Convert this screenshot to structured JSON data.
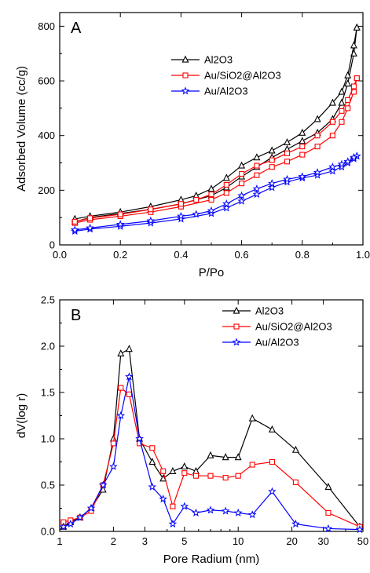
{
  "chart_data": [
    {
      "type": "line",
      "panel_label": "A",
      "xlabel": "P/Po",
      "ylabel": "Adsorbed Volume (cc/g)",
      "xlim": [
        0.0,
        1.0
      ],
      "ylim": [
        0,
        850
      ],
      "x_ticks": [
        0.0,
        0.2,
        0.4,
        0.6,
        0.8,
        1.0
      ],
      "x_tick_labels": [
        "0.0",
        "0.2",
        "0.4",
        "0.6",
        "0.8",
        "1.0"
      ],
      "y_ticks": [
        0,
        200,
        400,
        600,
        800
      ],
      "y_tick_labels": [
        "0",
        "200",
        "400",
        "600",
        "800"
      ],
      "legend_position": "top-right",
      "series": [
        {
          "name": "Al2O3",
          "color": "#000000",
          "marker": "triangle",
          "adsorption": {
            "x": [
              0.05,
              0.1,
              0.2,
              0.3,
              0.4,
              0.5,
              0.55,
              0.6,
              0.65,
              0.7,
              0.75,
              0.8,
              0.85,
              0.9,
              0.93,
              0.95,
              0.97,
              0.98
            ],
            "y": [
              85,
              100,
              115,
              130,
              150,
              180,
              210,
              250,
              285,
              320,
              350,
              380,
              410,
              460,
              520,
              590,
              700,
              795
            ]
          },
          "desorption": {
            "x": [
              0.98,
              0.97,
              0.95,
              0.93,
              0.9,
              0.85,
              0.8,
              0.75,
              0.7,
              0.65,
              0.6,
              0.55,
              0.5,
              0.45,
              0.4,
              0.3,
              0.2,
              0.1,
              0.05
            ],
            "y": [
              795,
              730,
              620,
              560,
              520,
              460,
              410,
              375,
              345,
              320,
              290,
              245,
              205,
              180,
              165,
              140,
              120,
              105,
              95
            ]
          }
        },
        {
          "name": "Au/SiO2@Al2O3",
          "color": "#ff0000",
          "marker": "square",
          "adsorption": {
            "x": [
              0.05,
              0.1,
              0.2,
              0.3,
              0.4,
              0.5,
              0.55,
              0.6,
              0.65,
              0.7,
              0.75,
              0.8,
              0.85,
              0.9,
              0.93,
              0.95,
              0.97,
              0.98
            ],
            "y": [
              80,
              92,
              105,
              120,
              140,
              165,
              190,
              225,
              255,
              285,
              305,
              330,
              360,
              400,
              450,
              500,
              560,
              610
            ]
          },
          "desorption": {
            "x": [
              0.98,
              0.97,
              0.95,
              0.93,
              0.9,
              0.85,
              0.8,
              0.75,
              0.7,
              0.65,
              0.6,
              0.55,
              0.5,
              0.45,
              0.4,
              0.3,
              0.2,
              0.1,
              0.05
            ],
            "y": [
              610,
              580,
              530,
              490,
              450,
              400,
              360,
              335,
              310,
              290,
              260,
              220,
              185,
              165,
              150,
              130,
              112,
              98,
              85
            ]
          }
        },
        {
          "name": "Au/Al2O3",
          "color": "#0000ff",
          "marker": "star",
          "adsorption": {
            "x": [
              0.05,
              0.1,
              0.2,
              0.3,
              0.4,
              0.5,
              0.55,
              0.6,
              0.65,
              0.7,
              0.75,
              0.8,
              0.85,
              0.9,
              0.93,
              0.95,
              0.97,
              0.98
            ],
            "y": [
              50,
              58,
              68,
              80,
              95,
              115,
              135,
              160,
              185,
              210,
              230,
              245,
              255,
              270,
              285,
              300,
              315,
              325
            ]
          },
          "desorption": {
            "x": [
              0.98,
              0.97,
              0.95,
              0.93,
              0.9,
              0.85,
              0.8,
              0.75,
              0.7,
              0.65,
              0.6,
              0.55,
              0.5,
              0.45,
              0.4,
              0.3,
              0.2,
              0.1,
              0.05
            ],
            "y": [
              325,
              320,
              305,
              295,
              285,
              265,
              250,
              240,
              225,
              205,
              180,
              150,
              125,
              112,
              105,
              88,
              75,
              62,
              55
            ]
          }
        }
      ]
    },
    {
      "type": "line",
      "panel_label": "B",
      "xlabel": "Pore Radium (nm)",
      "ylabel": "dV(log r)",
      "x_scale": "log",
      "xlim": [
        1,
        50
      ],
      "ylim": [
        0.0,
        2.5
      ],
      "x_ticks": [
        1,
        2,
        3,
        5,
        10,
        20,
        30,
        50
      ],
      "x_tick_labels": [
        "1",
        "2",
        "3",
        "5",
        "10",
        "20",
        "30",
        "50"
      ],
      "y_ticks": [
        0.0,
        0.5,
        1.0,
        1.5,
        2.0,
        2.5
      ],
      "y_tick_labels": [
        "0.0",
        "0.5",
        "1.0",
        "1.5",
        "2.0",
        "2.5"
      ],
      "legend_position": "top-right",
      "series": [
        {
          "name": "Al2O3",
          "color": "#000000",
          "marker": "triangle",
          "x": [
            1.05,
            1.15,
            1.3,
            1.5,
            1.75,
            2.0,
            2.2,
            2.45,
            2.8,
            3.3,
            3.8,
            4.3,
            5.0,
            5.8,
            7.0,
            8.5,
            10.0,
            12.0,
            15.5,
            21.0,
            32.0,
            48.0
          ],
          "y": [
            0.05,
            0.1,
            0.15,
            0.25,
            0.45,
            1.0,
            1.92,
            1.97,
            1.0,
            0.75,
            0.57,
            0.65,
            0.7,
            0.65,
            0.82,
            0.8,
            0.8,
            1.22,
            1.1,
            0.88,
            0.48,
            0.05
          ]
        },
        {
          "name": "Au/SiO2@Al2O3",
          "color": "#ff0000",
          "marker": "square",
          "x": [
            1.05,
            1.15,
            1.3,
            1.5,
            1.75,
            2.0,
            2.2,
            2.45,
            2.8,
            3.3,
            3.8,
            4.3,
            5.0,
            5.8,
            7.0,
            8.5,
            10.0,
            12.0,
            15.5,
            21.0,
            32.0,
            48.0
          ],
          "y": [
            0.1,
            0.12,
            0.15,
            0.22,
            0.5,
            0.95,
            1.55,
            1.48,
            0.95,
            0.9,
            0.65,
            0.27,
            0.63,
            0.6,
            0.6,
            0.58,
            0.6,
            0.72,
            0.75,
            0.53,
            0.2,
            0.05
          ]
        },
        {
          "name": "Au/Al2O3",
          "color": "#0000ff",
          "marker": "star",
          "x": [
            1.05,
            1.15,
            1.3,
            1.5,
            1.75,
            2.0,
            2.2,
            2.45,
            2.8,
            3.3,
            3.8,
            4.3,
            5.0,
            5.8,
            7.0,
            8.5,
            10.0,
            12.0,
            15.5,
            21.0,
            32.0,
            48.0
          ],
          "y": [
            0.05,
            0.08,
            0.15,
            0.25,
            0.5,
            0.7,
            1.25,
            1.67,
            1.0,
            0.48,
            0.35,
            0.08,
            0.27,
            0.2,
            0.23,
            0.22,
            0.2,
            0.18,
            0.43,
            0.08,
            0.03,
            0.02
          ]
        }
      ]
    }
  ]
}
